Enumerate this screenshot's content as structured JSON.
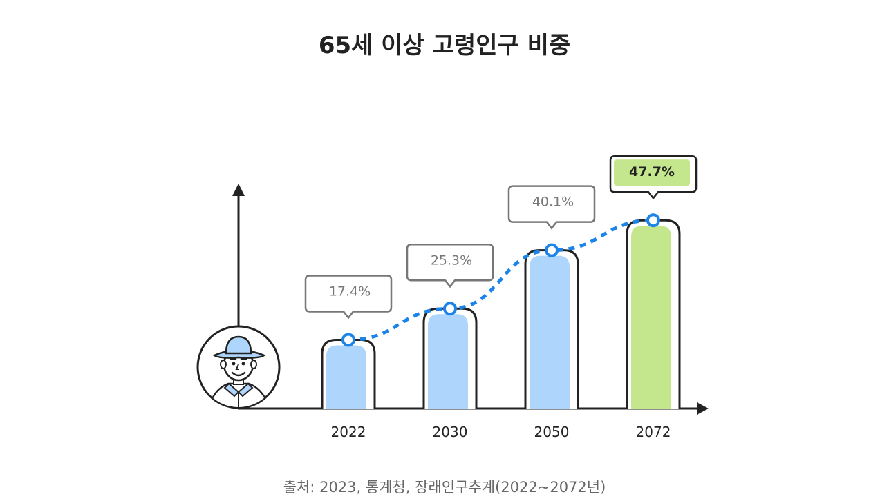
{
  "chart_data": {
    "type": "bar",
    "title": "65세 이상 고령인구 비중",
    "categories": [
      "2022",
      "2030",
      "2050",
      "2072"
    ],
    "values": [
      17.4,
      25.3,
      40.1,
      47.7
    ],
    "value_labels": [
      "17.4%",
      "25.3%",
      "40.1%",
      "47.7%"
    ],
    "unit": "%",
    "ylim": [
      0,
      57
    ],
    "grid": false,
    "legend": "none",
    "highlight_index": 3,
    "trend_line": true,
    "source": "출처: 2023, 통계청, 장래인구추계(2022~2072년)"
  },
  "colors": {
    "bar_fill": "#aed5fb",
    "bar_highlight": "#c4e68c",
    "outline": "#222222",
    "trend_line": "#1c84e8",
    "label_box_border": "#777777",
    "highlight_box_fill": "#c4e68c"
  },
  "icons": {
    "axis_illustration": "elderly-person-icon"
  }
}
